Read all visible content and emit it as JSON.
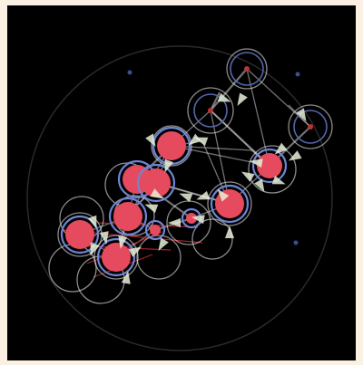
{
  "colors": {
    "page_background": "#fbf1e2",
    "canvas_background": "#000000",
    "boundary_ring": "#2a2a2a",
    "node_fill": "#e54a5e",
    "node_ring": "#6f86d6",
    "inactive_node_ring": "#5566aa",
    "inactive_node_core": "#b83535",
    "anchor_dot": "#3b4d99",
    "edge": "#d0d0d0",
    "arrow": "#e6f0d8",
    "red_link": "#c0262b",
    "halo_ring": "#e8e8e8"
  },
  "icons": {
    "node": "filled-circle-with-arrow",
    "anchor": "small-dot",
    "boundary": "large-circle-outline"
  },
  "graph": {
    "node_kinds": [
      "active",
      "inactive",
      "anchor"
    ],
    "counts": {
      "active_nodes": 10,
      "inactive_nodes": 3,
      "anchor_points": 3
    }
  }
}
